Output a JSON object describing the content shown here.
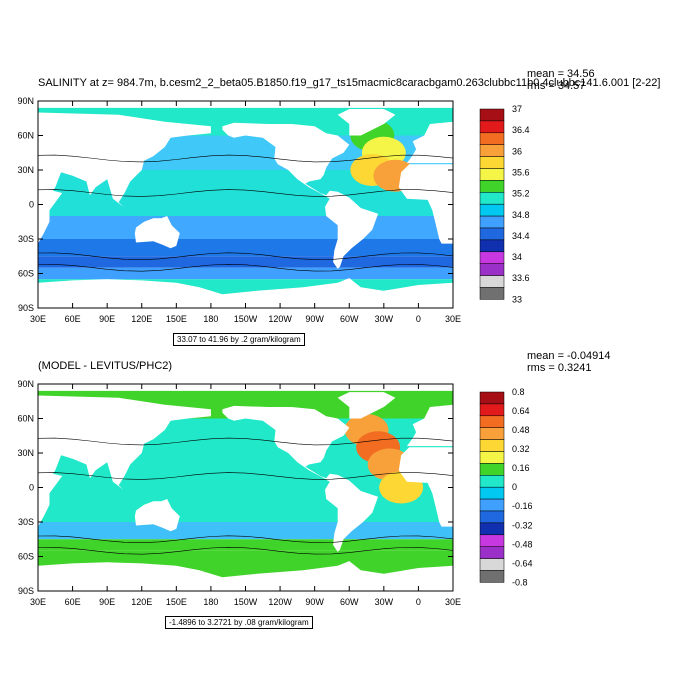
{
  "panels": [
    {
      "title": "SALINITY at z= 984.7m, b.cesm2_2_beta05.B1850.f19_g17_ts15macmic8caracbgam0.263clubbc11b0.4clubbc141.6.001 [2-22]",
      "mean_label": "mean = 34.56",
      "rms_label": "rms = 34.57",
      "range_label": "33.07 to 41.96 by .2 gram/kilogram",
      "colorbar": {
        "levels": [
          "37",
          "36.4",
          "36",
          "35.6",
          "35.2",
          "34.8",
          "34.4",
          "34",
          "33.6",
          "33"
        ],
        "colors": [
          "#a50f15",
          "#e31a1c",
          "#f26c21",
          "#f8a13a",
          "#fdd835",
          "#f5f548",
          "#40d42a",
          "#20e8c8",
          "#00c8f0",
          "#40a0ff",
          "#1f68e0",
          "#1030b0",
          "#c838e0",
          "#9b30c8",
          "#d8d8d8",
          "#707070"
        ]
      }
    },
    {
      "title": "(MODEL - LEVITUS/PHC2)",
      "mean_label": "mean = -0.04914",
      "rms_label": "rms = 0.3241",
      "range_label": "-1.4896 to 3.2721 by .08 gram/kilogram",
      "colorbar": {
        "levels": [
          "0.8",
          "0.64",
          "0.48",
          "0.32",
          "0.16",
          "0",
          "-0.16",
          "-0.32",
          "-0.48",
          "-0.64",
          "-0.8"
        ],
        "colors": [
          "#a50f15",
          "#e31a1c",
          "#f26c21",
          "#f8a13a",
          "#fdd835",
          "#f5f548",
          "#40d42a",
          "#20e8c8",
          "#00c8f0",
          "#40a0ff",
          "#1f68e0",
          "#1030b0",
          "#c838e0",
          "#9b30c8",
          "#d8d8d8",
          "#707070"
        ]
      }
    }
  ],
  "lat_labels": [
    "90N",
    "60N",
    "30N",
    "0",
    "30S",
    "60S",
    "90S"
  ],
  "lon_labels": [
    "30E",
    "60E",
    "90E",
    "120E",
    "150E",
    "180",
    "150W",
    "120W",
    "90W",
    "60W",
    "30W",
    "0",
    "30E"
  ]
}
